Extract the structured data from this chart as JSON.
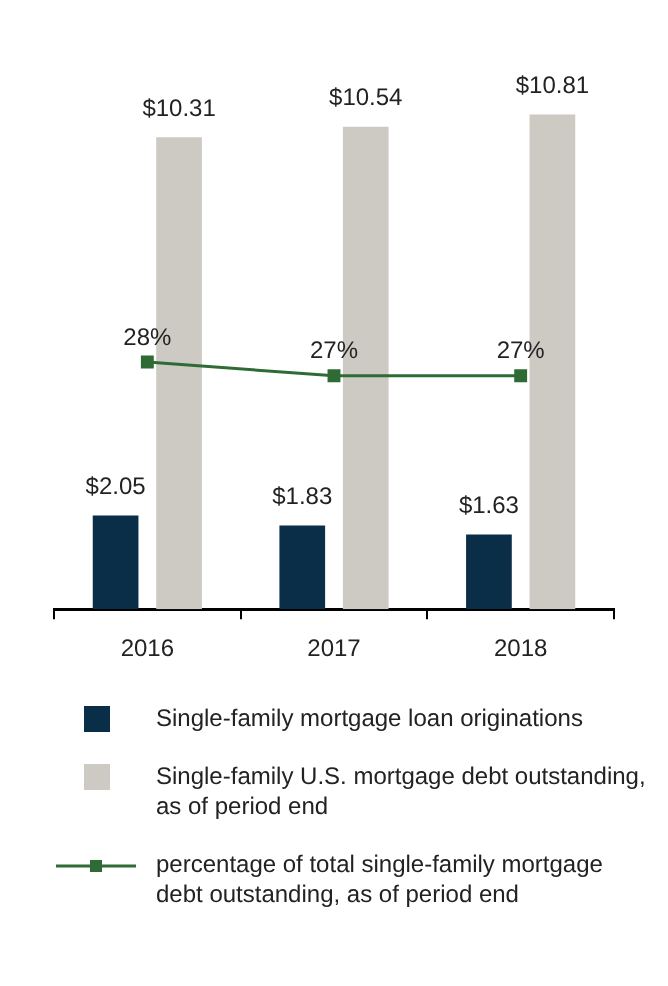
{
  "chart_data": {
    "type": "bar",
    "categories": [
      "2016",
      "2017",
      "2018"
    ],
    "series": [
      {
        "name": "Single-family mortgage loan originations",
        "color": "#0a2d48",
        "values": [
          2.05,
          1.83,
          1.63
        ],
        "value_labels": [
          "$2.05",
          "$1.83",
          "$1.63"
        ]
      },
      {
        "name": "Single-family U.S. mortgage debt outstanding, as of period end",
        "color": "#cdcac4",
        "values": [
          10.31,
          10.54,
          10.81
        ],
        "value_labels": [
          "$10.31",
          "$10.54",
          "$10.81"
        ]
      },
      {
        "name": "percentage of total single-family mortgage debt outstanding, as of period end",
        "type": "line",
        "axis": "y2",
        "color": "#2e6b35",
        "values": [
          28,
          27,
          27
        ],
        "value_labels": [
          "28%",
          "27%",
          "27%"
        ]
      }
    ],
    "tick_labels": "x",
    "grid": false,
    "legend": "bottom",
    "marker": "square",
    "line_style": "solid"
  }
}
